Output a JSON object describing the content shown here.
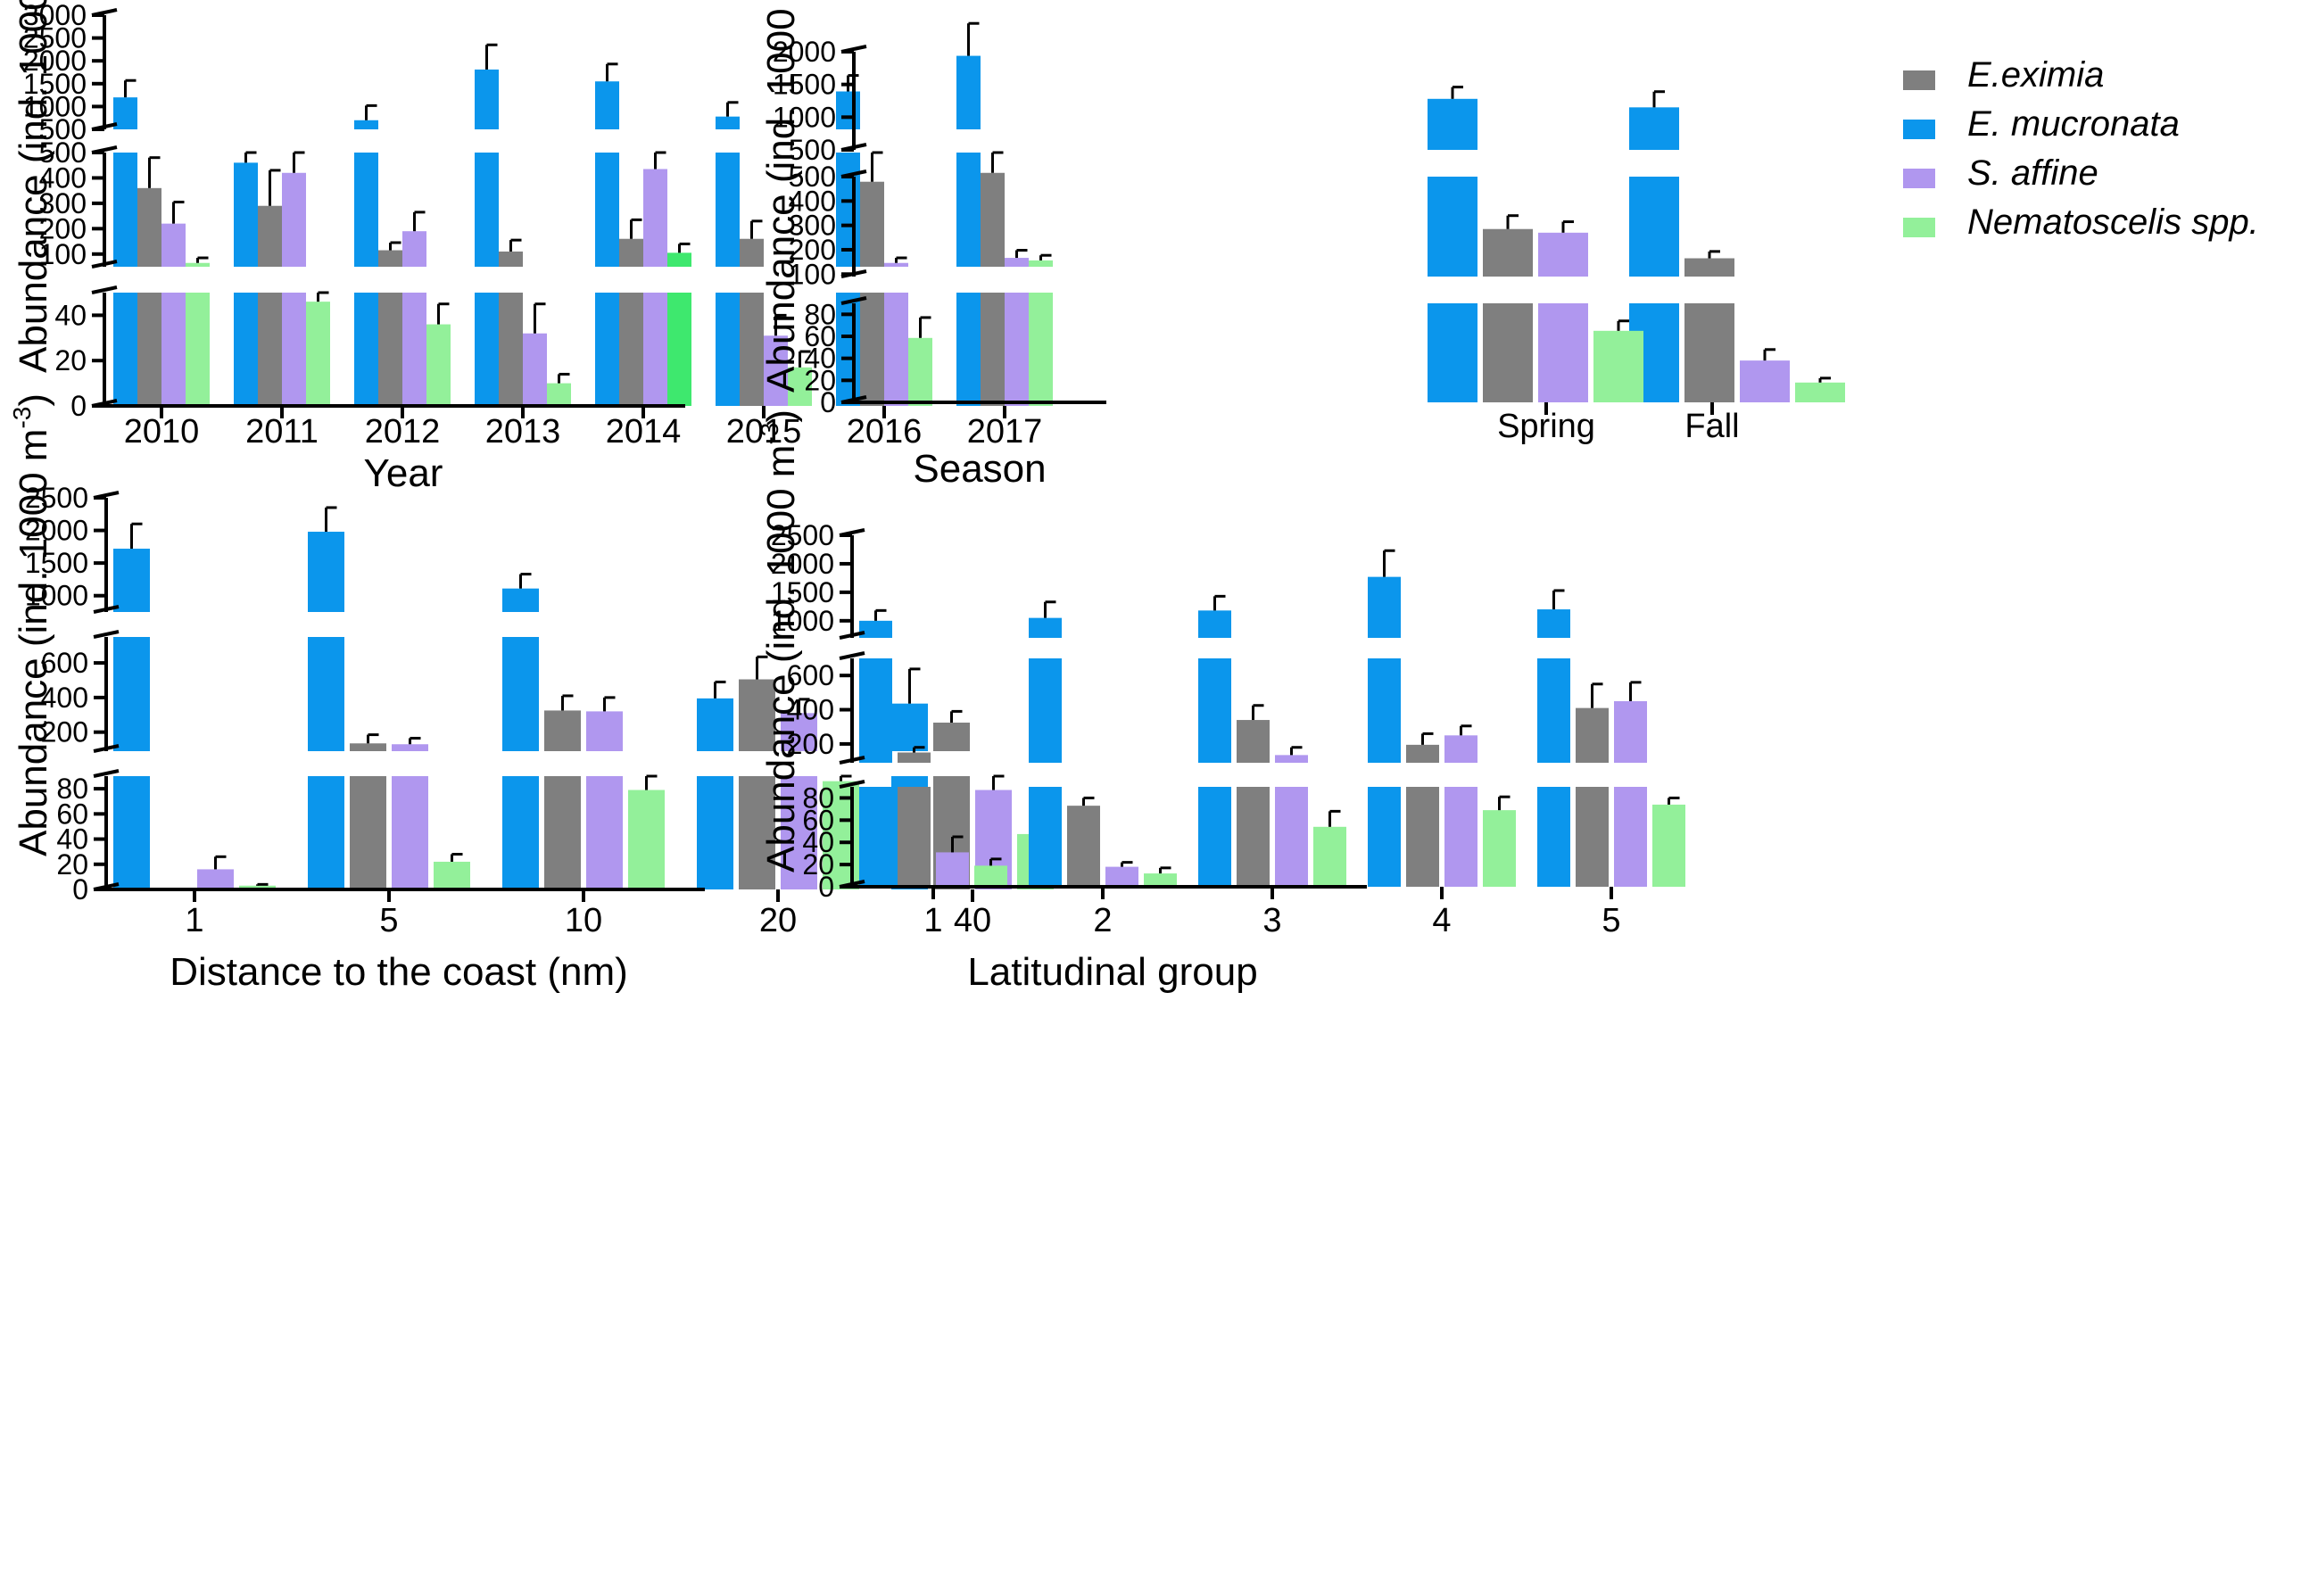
{
  "legend": {
    "entries": [
      {
        "label": "E.eximia",
        "color": "#7f7f7f"
      },
      {
        "label": "E. mucronata",
        "color": "#0b96ec"
      },
      {
        "label": "S. affine",
        "color": "#b097ef"
      },
      {
        "label": "Nematoscelis spp.",
        "color": "#93f09a"
      }
    ]
  },
  "chart_data": [
    {
      "id": "year",
      "type": "bar",
      "title": "",
      "xlabel": "Year",
      "ylabel": "Abundance (ind. 1000 m",
      "ylabel_sup": "-3",
      "ylabel_close": ")",
      "categories": [
        "2010",
        "2011",
        "2012",
        "2013",
        "2014",
        "2015",
        "2016",
        "2017"
      ],
      "series_order": [
        "E. mucronata",
        "E.eximia",
        "S. affine",
        "Nematoscelis spp."
      ],
      "series": [
        {
          "name": "E. mucronata",
          "values": [
            1200,
            460,
            700,
            1810,
            1550,
            780,
            1330,
            2110
          ],
          "errors": [
            370,
            40,
            320,
            540,
            380,
            310,
            350,
            710
          ]
        },
        {
          "name": "E.eximia",
          "values": [
            360,
            290,
            115,
            110,
            160,
            160,
            385,
            420
          ],
          "errors": [
            120,
            140,
            30,
            45,
            75,
            70,
            115,
            80
          ]
        },
        {
          "name": "S. affine",
          "values": [
            220,
            420,
            190,
            32,
            435,
            31,
            65,
            85
          ],
          "errors": [
            85,
            80,
            75,
            13,
            65,
            9,
            20,
            30
          ]
        },
        {
          "name": "Nematoscelis spp.",
          "values": [
            65,
            46,
            36,
            10,
            105,
            17,
            30,
            75
          ],
          "errors": [
            20,
            5,
            9,
            4,
            35,
            7,
            9,
            20
          ]
        }
      ],
      "highlight": {
        "series": "Nematoscelis spp.",
        "category": "2014",
        "color": "#3ee86e"
      },
      "segments": [
        {
          "range": [
            500,
            3000
          ],
          "ticks": [
            500,
            1000,
            1500,
            2000,
            2500,
            3000
          ]
        },
        {
          "range": [
            50,
            500
          ],
          "ticks": [
            100,
            200,
            300,
            400,
            500
          ]
        },
        {
          "range": [
            0,
            50
          ],
          "ticks": [
            0,
            20,
            40
          ]
        }
      ]
    },
    {
      "id": "season",
      "type": "bar",
      "title": "",
      "xlabel": "Season",
      "ylabel": "Abundance (ind. 1000 m",
      "ylabel_sup": "-3",
      "ylabel_close": ")",
      "categories": [
        "Spring",
        "Fall"
      ],
      "series_order": [
        "E. mucronata",
        "E.eximia",
        "S. affine",
        "Nematoscelis spp."
      ],
      "series": [
        {
          "name": "E. mucronata",
          "values": [
            1280,
            1150
          ],
          "errors": [
            180,
            240
          ]
        },
        {
          "name": "E.eximia",
          "values": [
            285,
            165
          ],
          "errors": [
            55,
            28
          ]
        },
        {
          "name": "S. affine",
          "values": [
            270,
            38
          ],
          "errors": [
            45,
            10
          ]
        },
        {
          "name": "Nematoscelis spp.",
          "values": [
            65,
            18
          ],
          "errors": [
            9,
            4
          ]
        }
      ],
      "segments": [
        {
          "range": [
            500,
            2000
          ],
          "ticks": [
            500,
            1000,
            1500,
            2000
          ]
        },
        {
          "range": [
            90,
            500
          ],
          "ticks": [
            100,
            200,
            300,
            400,
            500
          ]
        },
        {
          "range": [
            0,
            90
          ],
          "ticks": [
            0,
            20,
            40,
            60,
            80
          ]
        }
      ]
    },
    {
      "id": "distance",
      "type": "bar",
      "title": "",
      "xlabel": "Distance to the coast (nm)",
      "ylabel": "Abundance (ind. 1000 m",
      "ylabel_sup": "-3",
      "ylabel_close": ")",
      "categories": [
        "1",
        "5",
        "10",
        "20",
        "40"
      ],
      "series_order": [
        "E. mucronata",
        "E.eximia",
        "S. affine",
        "Nematoscelis spp."
      ],
      "series": [
        {
          "name": "E. mucronata",
          "values": [
            1720,
            1980,
            1110,
            395,
            365
          ],
          "errors": [
            380,
            370,
            220,
            95,
            200
          ]
        },
        {
          "name": "E.eximia",
          "values": [
            0,
            135,
            325,
            505,
            255
          ],
          "errors": [
            0,
            50,
            85,
            130,
            65
          ]
        },
        {
          "name": "S. affine",
          "values": [
            16,
            130,
            320,
            310,
            79
          ],
          "errors": [
            10,
            35,
            80,
            80,
            11
          ]
        },
        {
          "name": "Nematoscelis spp.",
          "values": [
            3,
            22,
            79,
            86,
            44
          ],
          "errors": [
            1,
            6,
            11,
            4,
            14
          ]
        }
      ],
      "segments": [
        {
          "range": [
            750,
            2500
          ],
          "ticks": [
            1000,
            1500,
            2000,
            2500
          ]
        },
        {
          "range": [
            90,
            750
          ],
          "ticks": [
            200,
            400,
            600
          ]
        },
        {
          "range": [
            0,
            90
          ],
          "ticks": [
            0,
            20,
            40,
            60,
            80
          ]
        }
      ]
    },
    {
      "id": "latitude",
      "type": "bar",
      "title": "",
      "xlabel": "Latitudinal group",
      "ylabel": "Abundance (ind. 1000 m",
      "ylabel_sup": "-3",
      "ylabel_close": ")",
      "categories": [
        "1",
        "2",
        "3",
        "4",
        "5"
      ],
      "series_order": [
        "E. mucronata",
        "E.eximia",
        "S. affine",
        "Nematoscelis spp."
      ],
      "series": [
        {
          "name": "E. mucronata",
          "values": [
            1000,
            1050,
            1180,
            1770,
            1200
          ],
          "errors": [
            180,
            280,
            250,
            460,
            330
          ]
        },
        {
          "name": "E.eximia",
          "values": [
            150,
            73,
            340,
            195,
            410
          ],
          "errors": [
            30,
            7,
            85,
            65,
            140
          ]
        },
        {
          "name": "S. affine",
          "values": [
            31,
            18,
            135,
            250,
            450
          ],
          "errors": [
            14,
            4,
            45,
            55,
            110
          ]
        },
        {
          "name": "Nematoscelis spp.",
          "values": [
            19,
            12,
            54,
            69,
            74
          ],
          "errors": [
            6,
            5,
            14,
            12,
            6
          ]
        }
      ],
      "segments": [
        {
          "range": [
            700,
            2500
          ],
          "ticks": [
            1000,
            1500,
            2000,
            2500
          ]
        },
        {
          "range": [
            90,
            700
          ],
          "ticks": [
            200,
            400,
            600
          ]
        },
        {
          "range": [
            0,
            90
          ],
          "ticks": [
            0,
            20,
            40,
            60,
            80
          ]
        }
      ]
    }
  ]
}
